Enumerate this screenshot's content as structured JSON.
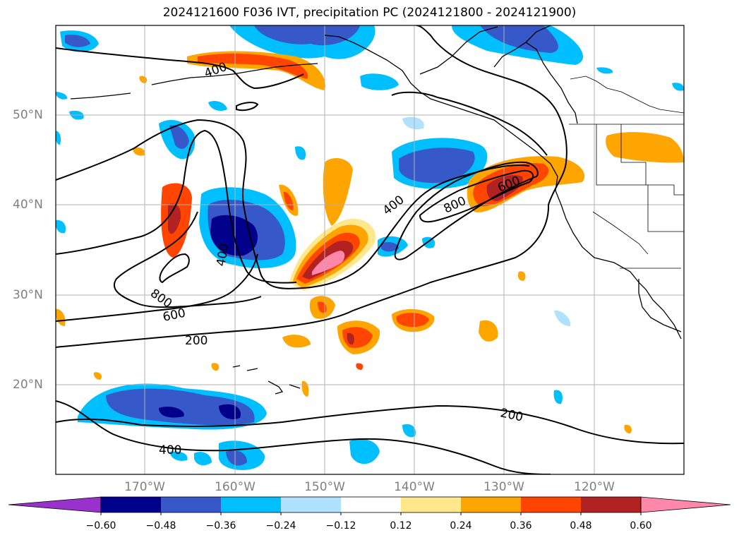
{
  "title": "2024121600 F036 IVT, precipitation PC (2024121800 - 2024121900)",
  "map": {
    "lon_labels": [
      "170°W",
      "160°W",
      "150°W",
      "140°W",
      "130°W",
      "120°W"
    ],
    "lat_labels": [
      "50°N",
      "40°N",
      "30°N",
      "20°N"
    ],
    "contour_labels": [
      "200",
      "200",
      "400",
      "400",
      "400",
      "600",
      "600",
      "800",
      "800",
      "400"
    ]
  },
  "colorbar": {
    "ticks": [
      "−0.60",
      "−0.48",
      "−0.36",
      "−0.24",
      "−0.12",
      "0.12",
      "0.24",
      "0.36",
      "0.48",
      "0.60"
    ],
    "colors": [
      "#9932cc",
      "#00008b",
      "#3658c8",
      "#00bfff",
      "#b0e2ff",
      "#ffffff",
      "#ffe88c",
      "#ffa500",
      "#ff4500",
      "#b22222",
      "#ff88aa"
    ]
  }
}
